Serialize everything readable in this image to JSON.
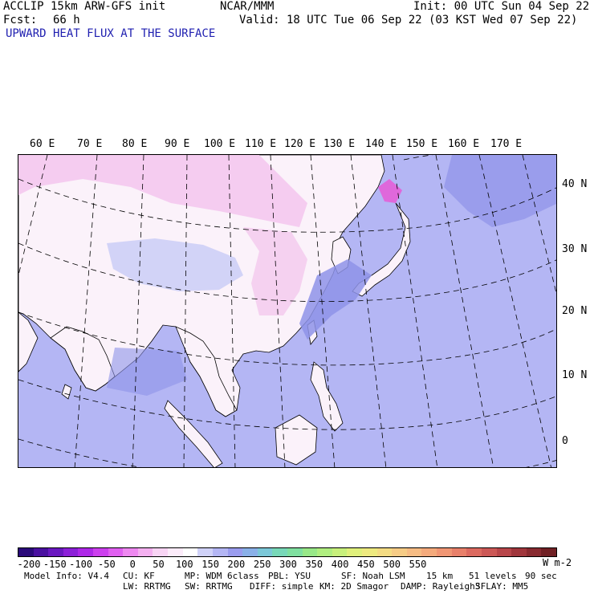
{
  "header": {
    "model": "ACCLIP 15km ARW-GFS init",
    "org": "NCAR/MMM",
    "init": "Init: 00 UTC Sun 04 Sep 22",
    "fcst_label": "Fcst:",
    "fcst_value": "66 h",
    "valid": "Valid: 18 UTC Tue 06 Sep 22 (03 KST Wed 07 Sep 22)",
    "title": "UPWARD HEAT FLUX AT THE SURFACE"
  },
  "map": {
    "longitude_labels": [
      "60 E",
      "70 E",
      "80 E",
      "90 E",
      "100 E",
      "110 E",
      "120 E",
      "130 E",
      "140 E",
      "150 E",
      "160 E",
      "170 E"
    ],
    "latitude_labels": [
      "40 N",
      "30 N",
      "20 N",
      "10 N",
      "0"
    ],
    "colors": {
      "ocean": "#b4b6f4",
      "land": "#ffffff",
      "warm_water": "#8e93e8",
      "positive_land": "#f4c8ee",
      "strong_negative": "#e35fd8"
    }
  },
  "colorbar": {
    "ticks": [
      "-200",
      "-150",
      "-100",
      "-50",
      "0",
      "50",
      "100",
      "150",
      "200",
      "250",
      "300",
      "350",
      "400",
      "450",
      "500",
      "550"
    ],
    "unit": "W m-2",
    "colors": [
      "#2b0a7a",
      "#4a10a0",
      "#6a18c0",
      "#8c20d8",
      "#ae28e8",
      "#cc40ee",
      "#e060f0",
      "#ee88f0",
      "#f4b0f0",
      "#f8d4f4",
      "#fcecfa",
      "#ffffff",
      "#d0d2f8",
      "#b4b6f4",
      "#9a9cee",
      "#8ab0e8",
      "#7cc8d8",
      "#78d8b8",
      "#80e0a0",
      "#98e888",
      "#b0ee80",
      "#c8f07c",
      "#e0f07c",
      "#eeea80",
      "#f4dc84",
      "#f6cc86",
      "#f6bc84",
      "#f4aa7c",
      "#f09674",
      "#e8806a",
      "#dc6a60",
      "#cc5856",
      "#b8464a",
      "#a0363c",
      "#882a30",
      "#702024"
    ]
  },
  "footer": {
    "line1": [
      "Model Info: V4.4",
      "CU: KF",
      "MP: WDM 6class",
      "PBL: YSU",
      "SF: Noah LSM",
      "15 km",
      "51 levels",
      "90 sec"
    ],
    "line2": [
      "LW: RRTMG",
      "SW: RRTMG",
      "DIFF: simple",
      "KM: 2D Smagor",
      "DAMP: Rayleigh3",
      "SFLAY: MM5"
    ]
  }
}
